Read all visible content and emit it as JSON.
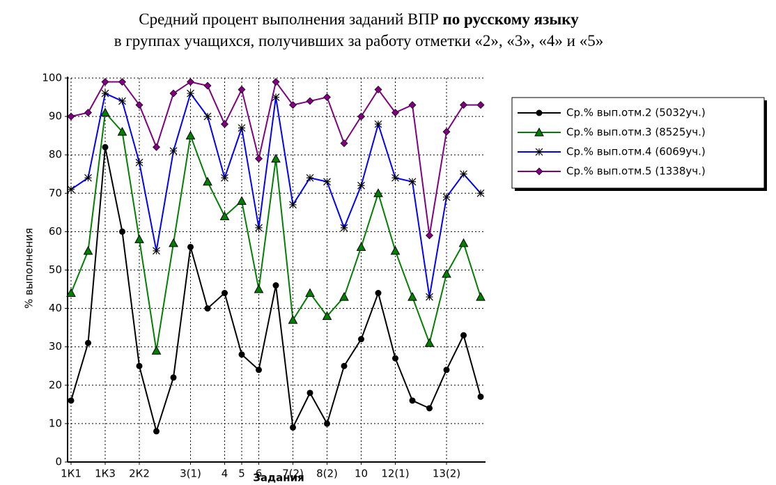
{
  "chart_data": {
    "type": "line",
    "title": "Средний процент выполнения заданий ВПР",
    "title_bold": "по русскому языку",
    "subtitle": "в группах учащихся, получивших за работу отметки «2», «3», «4» и «5»",
    "y_label": "% выполнения",
    "x_label": "Задания",
    "categories": [
      "1К1",
      null,
      "1К3",
      null,
      "2К2",
      null,
      null,
      "3(1)",
      null,
      "4",
      "5",
      "6",
      null,
      "7(2)",
      null,
      "8(2)",
      null,
      "10",
      null,
      "12(1)",
      null,
      null,
      "13(2)",
      null,
      null
    ],
    "series": [
      {
        "name": "Ср.% вып.отм.2 (5032уч.)",
        "color": "#000000",
        "marker": "circle",
        "values": [
          16,
          31,
          82,
          60,
          25,
          8,
          22,
          56,
          40,
          44,
          28,
          24,
          46,
          9,
          18,
          10,
          25,
          32,
          44,
          27,
          16,
          14,
          24,
          33,
          17
        ]
      },
      {
        "name": "Ср.% вып.отм.3 (8525уч.)",
        "color": "#008000",
        "marker": "triangle",
        "values": [
          44,
          55,
          91,
          86,
          58,
          29,
          57,
          85,
          73,
          64,
          68,
          45,
          79,
          37,
          44,
          38,
          43,
          56,
          70,
          55,
          43,
          31,
          49,
          57,
          43
        ]
      },
      {
        "name": "Ср.% вып.отм.4 (6069уч.)",
        "color": "#0000ff",
        "marker": "star",
        "values": [
          71,
          74,
          96,
          94,
          78,
          55,
          81,
          96,
          90,
          74,
          87,
          61,
          95,
          67,
          74,
          73,
          61,
          72,
          88,
          74,
          73,
          43,
          69,
          75,
          70
        ]
      },
      {
        "name": "Ср.% вып.отм.5 (1338уч.)",
        "color": "#800080",
        "marker": "diamond",
        "values": [
          90,
          91,
          99,
          99,
          93,
          82,
          96,
          99,
          98,
          88,
          97,
          79,
          99,
          93,
          94,
          95,
          83,
          90,
          97,
          91,
          93,
          59,
          86,
          93,
          93
        ]
      }
    ],
    "ylim": [
      0,
      100
    ],
    "yticks": [
      0,
      10,
      20,
      30,
      40,
      50,
      60,
      70,
      80,
      90,
      100
    ],
    "grid": true,
    "legend": "right"
  }
}
